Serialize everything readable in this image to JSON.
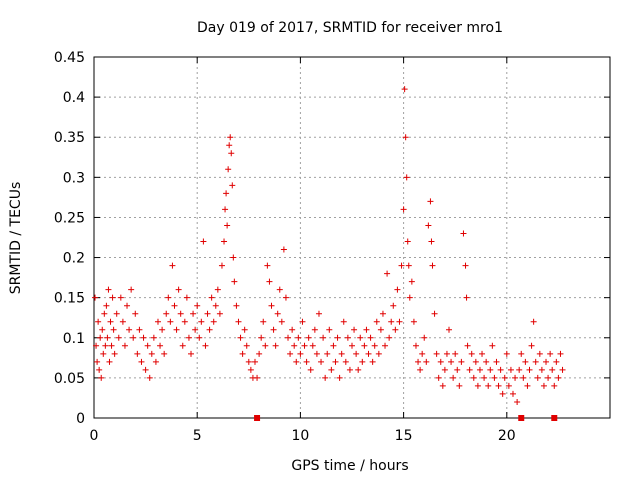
{
  "chart_data": {
    "type": "scatter",
    "title": "Day 019 of 2017, SRMTID for receiver mro1",
    "xlabel": "GPS time / hours",
    "ylabel": "SRMTID / TECUs",
    "xlim": [
      0,
      25
    ],
    "ylim": [
      0,
      0.45
    ],
    "x_ticks": [
      0,
      5,
      10,
      15,
      20
    ],
    "x_tick_labels": [
      "0",
      "5",
      "10",
      "15",
      "20"
    ],
    "y_ticks": [
      0,
      0.05,
      0.1,
      0.15,
      0.2,
      0.25,
      0.3,
      0.35,
      0.4,
      0.45
    ],
    "y_tick_labels": [
      "0",
      "0.05",
      "0.1",
      "0.15",
      "0.2",
      "0.25",
      "0.3",
      "0.35",
      "0.4",
      "0.45"
    ],
    "grid": true,
    "marker": "plus",
    "color": "#e00000",
    "series": [
      {
        "name": "SRMTID",
        "points": [
          [
            0.05,
            0.15
          ],
          [
            0.1,
            0.09
          ],
          [
            0.15,
            0.07
          ],
          [
            0.2,
            0.12
          ],
          [
            0.25,
            0.06
          ],
          [
            0.3,
            0.1
          ],
          [
            0.35,
            0.05
          ],
          [
            0.4,
            0.11
          ],
          [
            0.45,
            0.08
          ],
          [
            0.5,
            0.13
          ],
          [
            0.55,
            0.09
          ],
          [
            0.6,
            0.14
          ],
          [
            0.65,
            0.1
          ],
          [
            0.7,
            0.16
          ],
          [
            0.75,
            0.07
          ],
          [
            0.8,
            0.12
          ],
          [
            0.85,
            0.09
          ],
          [
            0.9,
            0.15
          ],
          [
            0.95,
            0.11
          ],
          [
            1.0,
            0.08
          ],
          [
            1.1,
            0.13
          ],
          [
            1.2,
            0.1
          ],
          [
            1.3,
            0.15
          ],
          [
            1.4,
            0.12
          ],
          [
            1.5,
            0.09
          ],
          [
            1.6,
            0.14
          ],
          [
            1.7,
            0.11
          ],
          [
            1.8,
            0.16
          ],
          [
            1.9,
            0.1
          ],
          [
            2.0,
            0.13
          ],
          [
            2.1,
            0.08
          ],
          [
            2.2,
            0.11
          ],
          [
            2.3,
            0.07
          ],
          [
            2.4,
            0.1
          ],
          [
            2.5,
            0.06
          ],
          [
            2.6,
            0.09
          ],
          [
            2.7,
            0.05
          ],
          [
            2.8,
            0.08
          ],
          [
            2.9,
            0.1
          ],
          [
            3.0,
            0.07
          ],
          [
            3.1,
            0.12
          ],
          [
            3.2,
            0.09
          ],
          [
            3.3,
            0.11
          ],
          [
            3.4,
            0.08
          ],
          [
            3.5,
            0.13
          ],
          [
            3.6,
            0.15
          ],
          [
            3.7,
            0.12
          ],
          [
            3.8,
            0.19
          ],
          [
            3.9,
            0.14
          ],
          [
            4.0,
            0.11
          ],
          [
            4.1,
            0.16
          ],
          [
            4.2,
            0.13
          ],
          [
            4.3,
            0.09
          ],
          [
            4.4,
            0.12
          ],
          [
            4.5,
            0.15
          ],
          [
            4.6,
            0.1
          ],
          [
            4.7,
            0.08
          ],
          [
            4.8,
            0.13
          ],
          [
            4.9,
            0.11
          ],
          [
            5.0,
            0.14
          ],
          [
            5.1,
            0.1
          ],
          [
            5.2,
            0.12
          ],
          [
            5.3,
            0.22
          ],
          [
            5.4,
            0.09
          ],
          [
            5.5,
            0.13
          ],
          [
            5.6,
            0.11
          ],
          [
            5.7,
            0.15
          ],
          [
            5.8,
            0.12
          ],
          [
            5.9,
            0.14
          ],
          [
            6.0,
            0.16
          ],
          [
            6.1,
            0.13
          ],
          [
            6.2,
            0.19
          ],
          [
            6.3,
            0.22
          ],
          [
            6.35,
            0.26
          ],
          [
            6.4,
            0.28
          ],
          [
            6.45,
            0.24
          ],
          [
            6.5,
            0.31
          ],
          [
            6.55,
            0.34
          ],
          [
            6.6,
            0.35
          ],
          [
            6.65,
            0.33
          ],
          [
            6.7,
            0.29
          ],
          [
            6.75,
            0.2
          ],
          [
            6.8,
            0.17
          ],
          [
            6.9,
            0.14
          ],
          [
            7.0,
            0.12
          ],
          [
            7.1,
            0.1
          ],
          [
            7.2,
            0.08
          ],
          [
            7.3,
            0.11
          ],
          [
            7.4,
            0.09
          ],
          [
            7.5,
            0.07
          ],
          [
            7.6,
            0.06
          ],
          [
            7.7,
            0.05
          ],
          [
            7.8,
            0.07
          ],
          [
            7.9,
            0.05
          ],
          [
            8.0,
            0.08
          ],
          [
            8.1,
            0.1
          ],
          [
            8.2,
            0.12
          ],
          [
            8.3,
            0.09
          ],
          [
            8.4,
            0.19
          ],
          [
            8.5,
            0.17
          ],
          [
            8.6,
            0.14
          ],
          [
            8.7,
            0.11
          ],
          [
            8.8,
            0.09
          ],
          [
            8.9,
            0.13
          ],
          [
            9.0,
            0.16
          ],
          [
            9.1,
            0.12
          ],
          [
            9.2,
            0.21
          ],
          [
            9.3,
            0.15
          ],
          [
            9.4,
            0.1
          ],
          [
            9.5,
            0.08
          ],
          [
            9.6,
            0.11
          ],
          [
            9.7,
            0.09
          ],
          [
            9.8,
            0.07
          ],
          [
            9.9,
            0.1
          ],
          [
            10.0,
            0.08
          ],
          [
            10.1,
            0.12
          ],
          [
            10.2,
            0.09
          ],
          [
            10.3,
            0.07
          ],
          [
            10.4,
            0.1
          ],
          [
            10.5,
            0.06
          ],
          [
            10.6,
            0.09
          ],
          [
            10.7,
            0.11
          ],
          [
            10.8,
            0.08
          ],
          [
            10.9,
            0.13
          ],
          [
            11.0,
            0.07
          ],
          [
            11.1,
            0.1
          ],
          [
            11.2,
            0.05
          ],
          [
            11.3,
            0.08
          ],
          [
            11.4,
            0.11
          ],
          [
            11.5,
            0.06
          ],
          [
            11.6,
            0.09
          ],
          [
            11.7,
            0.07
          ],
          [
            11.8,
            0.1
          ],
          [
            11.9,
            0.05
          ],
          [
            12.0,
            0.08
          ],
          [
            12.1,
            0.12
          ],
          [
            12.2,
            0.07
          ],
          [
            12.3,
            0.1
          ],
          [
            12.4,
            0.06
          ],
          [
            12.5,
            0.09
          ],
          [
            12.6,
            0.11
          ],
          [
            12.7,
            0.08
          ],
          [
            12.8,
            0.06
          ],
          [
            12.9,
            0.1
          ],
          [
            13.0,
            0.07
          ],
          [
            13.1,
            0.09
          ],
          [
            13.2,
            0.11
          ],
          [
            13.3,
            0.08
          ],
          [
            13.4,
            0.1
          ],
          [
            13.5,
            0.07
          ],
          [
            13.6,
            0.09
          ],
          [
            13.7,
            0.12
          ],
          [
            13.8,
            0.08
          ],
          [
            13.9,
            0.11
          ],
          [
            14.0,
            0.13
          ],
          [
            14.1,
            0.09
          ],
          [
            14.2,
            0.18
          ],
          [
            14.3,
            0.1
          ],
          [
            14.4,
            0.12
          ],
          [
            14.5,
            0.14
          ],
          [
            14.6,
            0.11
          ],
          [
            14.7,
            0.16
          ],
          [
            14.8,
            0.12
          ],
          [
            14.9,
            0.19
          ],
          [
            15.0,
            0.26
          ],
          [
            15.05,
            0.41
          ],
          [
            15.1,
            0.35
          ],
          [
            15.15,
            0.3
          ],
          [
            15.2,
            0.22
          ],
          [
            15.25,
            0.19
          ],
          [
            15.3,
            0.15
          ],
          [
            15.4,
            0.17
          ],
          [
            15.5,
            0.12
          ],
          [
            15.6,
            0.09
          ],
          [
            15.7,
            0.07
          ],
          [
            15.8,
            0.06
          ],
          [
            15.9,
            0.08
          ],
          [
            16.0,
            0.1
          ],
          [
            16.1,
            0.07
          ],
          [
            16.2,
            0.24
          ],
          [
            16.3,
            0.27
          ],
          [
            16.35,
            0.22
          ],
          [
            16.4,
            0.19
          ],
          [
            16.5,
            0.13
          ],
          [
            16.6,
            0.08
          ],
          [
            16.7,
            0.05
          ],
          [
            16.8,
            0.07
          ],
          [
            16.9,
            0.04
          ],
          [
            17.0,
            0.06
          ],
          [
            17.1,
            0.08
          ],
          [
            17.2,
            0.11
          ],
          [
            17.3,
            0.07
          ],
          [
            17.4,
            0.05
          ],
          [
            17.5,
            0.08
          ],
          [
            17.6,
            0.06
          ],
          [
            17.7,
            0.04
          ],
          [
            17.8,
            0.07
          ],
          [
            17.9,
            0.23
          ],
          [
            18.0,
            0.19
          ],
          [
            18.05,
            0.15
          ],
          [
            18.1,
            0.09
          ],
          [
            18.2,
            0.06
          ],
          [
            18.3,
            0.08
          ],
          [
            18.4,
            0.05
          ],
          [
            18.5,
            0.07
          ],
          [
            18.6,
            0.04
          ],
          [
            18.7,
            0.06
          ],
          [
            18.8,
            0.08
          ],
          [
            18.9,
            0.05
          ],
          [
            19.0,
            0.07
          ],
          [
            19.1,
            0.04
          ],
          [
            19.2,
            0.06
          ],
          [
            19.3,
            0.09
          ],
          [
            19.4,
            0.05
          ],
          [
            19.5,
            0.07
          ],
          [
            19.6,
            0.04
          ],
          [
            19.7,
            0.06
          ],
          [
            19.8,
            0.03
          ],
          [
            19.9,
            0.05
          ],
          [
            20.0,
            0.08
          ],
          [
            20.1,
            0.04
          ],
          [
            20.2,
            0.06
          ],
          [
            20.3,
            0.03
          ],
          [
            20.4,
            0.05
          ],
          [
            20.5,
            0.02
          ],
          [
            20.6,
            0.06
          ],
          [
            20.7,
            0.08
          ],
          [
            20.8,
            0.05
          ],
          [
            20.9,
            0.07
          ],
          [
            21.0,
            0.04
          ],
          [
            21.1,
            0.06
          ],
          [
            21.2,
            0.09
          ],
          [
            21.3,
            0.12
          ],
          [
            21.4,
            0.07
          ],
          [
            21.5,
            0.05
          ],
          [
            21.6,
            0.08
          ],
          [
            21.7,
            0.06
          ],
          [
            21.8,
            0.04
          ],
          [
            21.9,
            0.07
          ],
          [
            22.0,
            0.05
          ],
          [
            22.1,
            0.08
          ],
          [
            22.2,
            0.06
          ],
          [
            22.3,
            0.04
          ],
          [
            22.4,
            0.07
          ],
          [
            22.5,
            0.05
          ],
          [
            22.6,
            0.08
          ],
          [
            22.7,
            0.06
          ]
        ]
      }
    ],
    "baseline_markers": [
      7.9,
      20.7,
      22.3
    ]
  }
}
